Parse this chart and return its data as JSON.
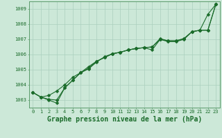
{
  "title": "Graphe pression niveau de la mer (hPa)",
  "background_color": "#cce8d8",
  "plot_bg_color": "#cce8d8",
  "grid_color": "#aacfbe",
  "line_color": "#1a6b2a",
  "marker_color": "#1a6b2a",
  "xlim": [
    -0.5,
    23.5
  ],
  "ylim": [
    1002.5,
    1009.5
  ],
  "yticks": [
    1003,
    1004,
    1005,
    1006,
    1007,
    1008,
    1009
  ],
  "xticks": [
    0,
    1,
    2,
    3,
    4,
    5,
    6,
    7,
    8,
    9,
    10,
    11,
    12,
    13,
    14,
    15,
    16,
    17,
    18,
    19,
    20,
    21,
    22,
    23
  ],
  "series": [
    [
      1003.5,
      1003.2,
      1003.0,
      1002.8,
      1003.8,
      1004.3,
      1004.8,
      1005.2,
      1005.55,
      1005.8,
      1006.05,
      1006.15,
      1006.3,
      1006.4,
      1006.45,
      1006.3,
      1007.0,
      1006.85,
      1006.85,
      1007.0,
      1007.5,
      1007.6,
      1008.65,
      1009.3
    ],
    [
      1003.5,
      1003.2,
      1003.05,
      1003.0,
      1003.8,
      1004.3,
      1004.8,
      1005.05,
      1005.5,
      1005.85,
      1006.05,
      1006.15,
      1006.3,
      1006.4,
      1006.45,
      1006.5,
      1007.0,
      1006.9,
      1006.9,
      1007.05,
      1007.5,
      1007.6,
      1007.6,
      1009.3
    ],
    [
      1003.5,
      1003.2,
      1003.3,
      1003.6,
      1004.0,
      1004.5,
      1004.8,
      1005.1,
      1005.55,
      1005.8,
      1006.05,
      1006.15,
      1006.3,
      1006.4,
      1006.45,
      1006.5,
      1007.05,
      1006.9,
      1006.9,
      1007.05,
      1007.5,
      1007.6,
      1007.6,
      1009.3
    ]
  ],
  "marker": "D",
  "markersize": 2.5,
  "linewidth": 0.8,
  "title_fontsize": 7,
  "tick_fontsize": 5,
  "title_color": "#1a6b2a",
  "tick_color": "#1a6b2a",
  "border_color": "#5a9a6a"
}
